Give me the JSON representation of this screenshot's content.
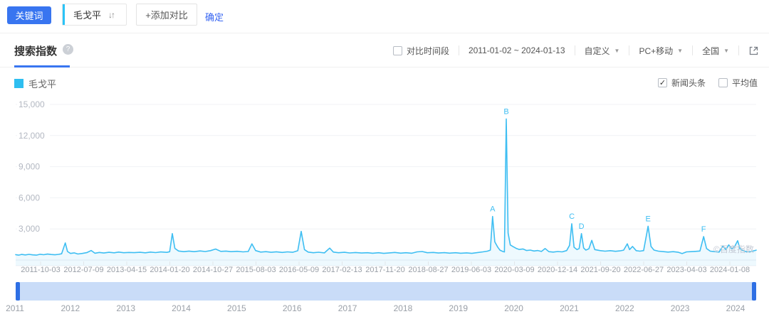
{
  "toolbar": {
    "keyword_button": "关键词",
    "keyword": "毛戈平",
    "add_compare": "+添加对比",
    "confirm": "确定"
  },
  "icons": {
    "sort": "↓↑",
    "help": "?",
    "caret": "▼",
    "check": "✓"
  },
  "panel": {
    "title": "搜索指数",
    "compare_period_label": "对比时间段",
    "compare_period_checked": "",
    "date_range": "2011-01-02 ~ 2024-01-13",
    "range_mode": "自定义",
    "device": "PC+移动",
    "region": "全国"
  },
  "legend": {
    "series_name": "毛戈平",
    "series_color": "#2ebef0",
    "news_label": "新闻头条",
    "news_check_glyph": "✓",
    "average_label": "平均值",
    "average_check_glyph": ""
  },
  "watermark": "©百度指数",
  "colors": {
    "primary_blue": "#3875f0",
    "line_cyan": "#3ebef2",
    "area_fill": "rgba(62,190,242,0.09)",
    "slider_track": "#c9dcf8",
    "slider_handle": "#2e6fe4"
  },
  "chart_data": {
    "type": "line",
    "title": "搜索指数",
    "series_name": "毛戈平",
    "line_color": "#3ebef2",
    "x_range": [
      "2011-01-02",
      "2024-01-13"
    ],
    "ylim": [
      0,
      15000
    ],
    "y_tick_values": [
      3000,
      6000,
      9000,
      12000,
      15000
    ],
    "y_tick_labels": [
      "3,000",
      "6,000",
      "9,000",
      "12,000",
      "15,000"
    ],
    "x_tick_labels": [
      "2011-10-03",
      "2012-07-09",
      "2013-04-15",
      "2014-01-20",
      "2014-10-27",
      "2015-08-03",
      "2016-05-09",
      "2017-02-13",
      "2017-11-20",
      "2018-08-27",
      "2019-06-03",
      "2020-03-09",
      "2020-12-14",
      "2021-09-20",
      "2022-06-27",
      "2023-04-03",
      "2024-01-08"
    ],
    "annotations": [
      {
        "label": "A",
        "x": 0.644,
        "value": 4200
      },
      {
        "label": "B",
        "x": 0.6625,
        "value": 13600
      },
      {
        "label": "C",
        "x": 0.751,
        "value": 3500
      },
      {
        "label": "D",
        "x": 0.764,
        "value": 2550
      },
      {
        "label": "E",
        "x": 0.854,
        "value": 3260
      },
      {
        "label": "F",
        "x": 0.929,
        "value": 2260
      }
    ],
    "points": [
      [
        0.0,
        520
      ],
      [
        0.004,
        470
      ],
      [
        0.008,
        540
      ],
      [
        0.013,
        490
      ],
      [
        0.018,
        550
      ],
      [
        0.023,
        500
      ],
      [
        0.028,
        470
      ],
      [
        0.033,
        555
      ],
      [
        0.038,
        515
      ],
      [
        0.043,
        575
      ],
      [
        0.048,
        535
      ],
      [
        0.053,
        510
      ],
      [
        0.058,
        545
      ],
      [
        0.062,
        600
      ],
      [
        0.067,
        1650
      ],
      [
        0.07,
        820
      ],
      [
        0.074,
        640
      ],
      [
        0.079,
        690
      ],
      [
        0.084,
        580
      ],
      [
        0.09,
        640
      ],
      [
        0.096,
        710
      ],
      [
        0.102,
        920
      ],
      [
        0.107,
        660
      ],
      [
        0.113,
        730
      ],
      [
        0.119,
        680
      ],
      [
        0.126,
        745
      ],
      [
        0.133,
        700
      ],
      [
        0.139,
        765
      ],
      [
        0.146,
        705
      ],
      [
        0.153,
        735
      ],
      [
        0.16,
        710
      ],
      [
        0.168,
        745
      ],
      [
        0.175,
        700
      ],
      [
        0.182,
        765
      ],
      [
        0.189,
        720
      ],
      [
        0.196,
        780
      ],
      [
        0.204,
        740
      ],
      [
        0.208,
        800
      ],
      [
        0.2115,
        2550
      ],
      [
        0.215,
        1120
      ],
      [
        0.22,
        870
      ],
      [
        0.227,
        810
      ],
      [
        0.234,
        865
      ],
      [
        0.241,
        805
      ],
      [
        0.249,
        880
      ],
      [
        0.256,
        825
      ],
      [
        0.263,
        905
      ],
      [
        0.27,
        1060
      ],
      [
        0.277,
        835
      ],
      [
        0.284,
        865
      ],
      [
        0.291,
        805
      ],
      [
        0.299,
        845
      ],
      [
        0.307,
        785
      ],
      [
        0.314,
        825
      ],
      [
        0.319,
        1560
      ],
      [
        0.324,
        910
      ],
      [
        0.331,
        765
      ],
      [
        0.338,
        805
      ],
      [
        0.345,
        745
      ],
      [
        0.352,
        795
      ],
      [
        0.36,
        735
      ],
      [
        0.367,
        785
      ],
      [
        0.374,
        745
      ],
      [
        0.381,
        900
      ],
      [
        0.3856,
        2760
      ],
      [
        0.39,
        1010
      ],
      [
        0.395,
        765
      ],
      [
        0.402,
        705
      ],
      [
        0.409,
        755
      ],
      [
        0.417,
        695
      ],
      [
        0.424,
        1150
      ],
      [
        0.429,
        770
      ],
      [
        0.436,
        705
      ],
      [
        0.444,
        745
      ],
      [
        0.451,
        685
      ],
      [
        0.459,
        725
      ],
      [
        0.467,
        675
      ],
      [
        0.475,
        705
      ],
      [
        0.482,
        655
      ],
      [
        0.49,
        705
      ],
      [
        0.497,
        645
      ],
      [
        0.505,
        695
      ],
      [
        0.512,
        735
      ],
      [
        0.52,
        665
      ],
      [
        0.527,
        705
      ],
      [
        0.535,
        655
      ],
      [
        0.542,
        785
      ],
      [
        0.549,
        825
      ],
      [
        0.556,
        705
      ],
      [
        0.564,
        735
      ],
      [
        0.571,
        675
      ],
      [
        0.579,
        715
      ],
      [
        0.586,
        665
      ],
      [
        0.594,
        705
      ],
      [
        0.601,
        655
      ],
      [
        0.609,
        695
      ],
      [
        0.616,
        645
      ],
      [
        0.624,
        725
      ],
      [
        0.631,
        785
      ],
      [
        0.637,
        855
      ],
      [
        0.641,
        950
      ],
      [
        0.644,
        4200
      ],
      [
        0.647,
        1750
      ],
      [
        0.651,
        1250
      ],
      [
        0.654,
        950
      ],
      [
        0.658,
        820
      ],
      [
        0.66,
        780
      ],
      [
        0.6625,
        13600
      ],
      [
        0.665,
        2600
      ],
      [
        0.668,
        1450
      ],
      [
        0.672,
        1280
      ],
      [
        0.676,
        1120
      ],
      [
        0.68,
        1020
      ],
      [
        0.685,
        1070
      ],
      [
        0.69,
        920
      ],
      [
        0.695,
        960
      ],
      [
        0.7,
        870
      ],
      [
        0.705,
        920
      ],
      [
        0.71,
        830
      ],
      [
        0.715,
        1110
      ],
      [
        0.72,
        810
      ],
      [
        0.726,
        765
      ],
      [
        0.732,
        825
      ],
      [
        0.738,
        785
      ],
      [
        0.744,
        910
      ],
      [
        0.748,
        1420
      ],
      [
        0.751,
        3500
      ],
      [
        0.754,
        1230
      ],
      [
        0.758,
        1010
      ],
      [
        0.761,
        1110
      ],
      [
        0.764,
        2550
      ],
      [
        0.767,
        1160
      ],
      [
        0.77,
        960
      ],
      [
        0.774,
        1080
      ],
      [
        0.778,
        1900
      ],
      [
        0.782,
        1010
      ],
      [
        0.789,
        910
      ],
      [
        0.796,
        855
      ],
      [
        0.803,
        905
      ],
      [
        0.81,
        845
      ],
      [
        0.816,
        885
      ],
      [
        0.821,
        955
      ],
      [
        0.826,
        1560
      ],
      [
        0.829,
        1010
      ],
      [
        0.833,
        1310
      ],
      [
        0.838,
        905
      ],
      [
        0.843,
        855
      ],
      [
        0.848,
        910
      ],
      [
        0.854,
        3260
      ],
      [
        0.858,
        1310
      ],
      [
        0.862,
        960
      ],
      [
        0.868,
        855
      ],
      [
        0.875,
        805
      ],
      [
        0.881,
        765
      ],
      [
        0.888,
        805
      ],
      [
        0.895,
        745
      ],
      [
        0.9,
        625
      ],
      [
        0.906,
        785
      ],
      [
        0.912,
        805
      ],
      [
        0.918,
        835
      ],
      [
        0.924,
        870
      ],
      [
        0.929,
        2260
      ],
      [
        0.933,
        1110
      ],
      [
        0.938,
        855
      ],
      [
        0.944,
        805
      ],
      [
        0.95,
        765
      ],
      [
        0.955,
        1360
      ],
      [
        0.959,
        1010
      ],
      [
        0.963,
        1460
      ],
      [
        0.967,
        1060
      ],
      [
        0.971,
        1310
      ],
      [
        0.975,
        1860
      ],
      [
        0.978,
        1110
      ],
      [
        0.982,
        910
      ],
      [
        0.986,
        825
      ],
      [
        0.99,
        785
      ],
      [
        0.995,
        855
      ],
      [
        1.0,
        950
      ]
    ],
    "legend_position": "top-left",
    "grid": true
  },
  "slider": {
    "years": [
      "2011",
      "2012",
      "2013",
      "2014",
      "2015",
      "2016",
      "2017",
      "2018",
      "2019",
      "2020",
      "2021",
      "2022",
      "2023",
      "2024"
    ]
  }
}
